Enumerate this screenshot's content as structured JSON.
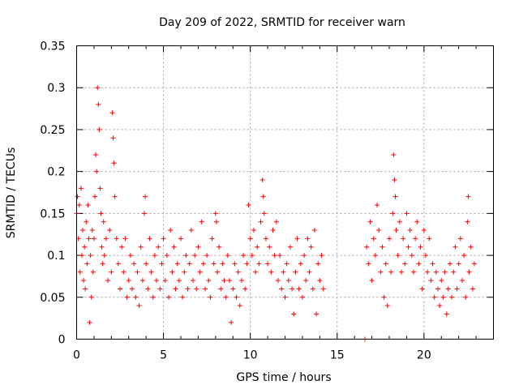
{
  "chart_data": {
    "type": "scatter",
    "title": "Day 209 of 2022, SRMTID for receiver warn",
    "xlabel": "GPS time / hours",
    "ylabel": "SRMTID / TECUs",
    "xlim": [
      0,
      24
    ],
    "ylim": [
      0,
      0.35
    ],
    "xticks": [
      "0",
      "5",
      "10",
      "15",
      "20"
    ],
    "yticks": [
      "0",
      "0.05",
      "0.1",
      "0.15",
      "0.2",
      "0.25",
      "0.3",
      "0.35"
    ],
    "grid": true,
    "marker": "+",
    "color": "#ff0000",
    "series": [
      {
        "name": "SRMTID",
        "points": [
          [
            0.0,
            0.15
          ],
          [
            0.05,
            0.17
          ],
          [
            0.1,
            0.12
          ],
          [
            0.15,
            0.16
          ],
          [
            0.2,
            0.08
          ],
          [
            0.25,
            0.18
          ],
          [
            0.3,
            0.1
          ],
          [
            0.35,
            0.13
          ],
          [
            0.4,
            0.07
          ],
          [
            0.45,
            0.11
          ],
          [
            0.5,
            0.06
          ],
          [
            0.55,
            0.14
          ],
          [
            0.6,
            0.09
          ],
          [
            0.65,
            0.16
          ],
          [
            0.7,
            0.12
          ],
          [
            0.75,
            0.02
          ],
          [
            0.8,
            0.1
          ],
          [
            0.85,
            0.05
          ],
          [
            0.9,
            0.13
          ],
          [
            0.95,
            0.08
          ],
          [
            1.0,
            0.12
          ],
          [
            1.05,
            0.17
          ],
          [
            1.1,
            0.22
          ],
          [
            1.15,
            0.2
          ],
          [
            1.2,
            0.3
          ],
          [
            1.25,
            0.28
          ],
          [
            1.3,
            0.25
          ],
          [
            1.35,
            0.18
          ],
          [
            1.4,
            0.15
          ],
          [
            1.45,
            0.11
          ],
          [
            1.5,
            0.09
          ],
          [
            1.55,
            0.14
          ],
          [
            1.6,
            0.1
          ],
          [
            1.7,
            0.12
          ],
          [
            1.8,
            0.07
          ],
          [
            1.9,
            0.13
          ],
          [
            2.0,
            0.08
          ],
          [
            2.05,
            0.27
          ],
          [
            2.1,
            0.24
          ],
          [
            2.15,
            0.21
          ],
          [
            2.2,
            0.17
          ],
          [
            2.3,
            0.12
          ],
          [
            2.4,
            0.09
          ],
          [
            2.5,
            0.06
          ],
          [
            2.6,
            0.11
          ],
          [
            2.7,
            0.08
          ],
          [
            2.8,
            0.12
          ],
          [
            2.9,
            0.05
          ],
          [
            3.0,
            0.07
          ],
          [
            3.1,
            0.1
          ],
          [
            3.2,
            0.06
          ],
          [
            3.3,
            0.09
          ],
          [
            3.4,
            0.05
          ],
          [
            3.5,
            0.08
          ],
          [
            3.6,
            0.04
          ],
          [
            3.7,
            0.11
          ],
          [
            3.8,
            0.07
          ],
          [
            3.9,
            0.15
          ],
          [
            3.95,
            0.17
          ],
          [
            4.0,
            0.09
          ],
          [
            4.1,
            0.06
          ],
          [
            4.2,
            0.12
          ],
          [
            4.3,
            0.08
          ],
          [
            4.4,
            0.05
          ],
          [
            4.5,
            0.1
          ],
          [
            4.6,
            0.07
          ],
          [
            4.7,
            0.11
          ],
          [
            4.8,
            0.06
          ],
          [
            4.9,
            0.09
          ],
          [
            5.0,
            0.12
          ],
          [
            5.1,
            0.07
          ],
          [
            5.2,
            0.1
          ],
          [
            5.3,
            0.05
          ],
          [
            5.4,
            0.13
          ],
          [
            5.5,
            0.08
          ],
          [
            5.6,
            0.11
          ],
          [
            5.7,
            0.06
          ],
          [
            5.8,
            0.09
          ],
          [
            5.9,
            0.07
          ],
          [
            6.0,
            0.12
          ],
          [
            6.1,
            0.05
          ],
          [
            6.2,
            0.08
          ],
          [
            6.3,
            0.1
          ],
          [
            6.4,
            0.06
          ],
          [
            6.5,
            0.09
          ],
          [
            6.6,
            0.13
          ],
          [
            6.7,
            0.07
          ],
          [
            6.8,
            0.1
          ],
          [
            6.9,
            0.06
          ],
          [
            7.0,
            0.11
          ],
          [
            7.1,
            0.08
          ],
          [
            7.2,
            0.14
          ],
          [
            7.3,
            0.09
          ],
          [
            7.4,
            0.06
          ],
          [
            7.5,
            0.1
          ],
          [
            7.6,
            0.07
          ],
          [
            7.7,
            0.05
          ],
          [
            7.8,
            0.12
          ],
          [
            7.9,
            0.09
          ],
          [
            8.0,
            0.15
          ],
          [
            8.05,
            0.14
          ],
          [
            8.1,
            0.08
          ],
          [
            8.2,
            0.11
          ],
          [
            8.3,
            0.06
          ],
          [
            8.4,
            0.09
          ],
          [
            8.5,
            0.07
          ],
          [
            8.6,
            0.05
          ],
          [
            8.7,
            0.1
          ],
          [
            8.8,
            0.07
          ],
          [
            8.9,
            0.02
          ],
          [
            9.0,
            0.06
          ],
          [
            9.1,
            0.09
          ],
          [
            9.2,
            0.05
          ],
          [
            9.3,
            0.08
          ],
          [
            9.4,
            0.04
          ],
          [
            9.5,
            0.07
          ],
          [
            9.6,
            0.1
          ],
          [
            9.7,
            0.06
          ],
          [
            9.8,
            0.09
          ],
          [
            9.9,
            0.16
          ],
          [
            10.0,
            0.12
          ],
          [
            10.1,
            0.1
          ],
          [
            10.2,
            0.13
          ],
          [
            10.3,
            0.08
          ],
          [
            10.4,
            0.11
          ],
          [
            10.5,
            0.09
          ],
          [
            10.6,
            0.14
          ],
          [
            10.7,
            0.19
          ],
          [
            10.75,
            0.17
          ],
          [
            10.8,
            0.15
          ],
          [
            10.9,
            0.12
          ],
          [
            11.0,
            0.09
          ],
          [
            11.1,
            0.11
          ],
          [
            11.2,
            0.08
          ],
          [
            11.3,
            0.13
          ],
          [
            11.4,
            0.1
          ],
          [
            11.5,
            0.14
          ],
          [
            11.6,
            0.07
          ],
          [
            11.7,
            0.1
          ],
          [
            11.8,
            0.06
          ],
          [
            11.9,
            0.08
          ],
          [
            12.0,
            0.05
          ],
          [
            12.1,
            0.09
          ],
          [
            12.2,
            0.07
          ],
          [
            12.3,
            0.11
          ],
          [
            12.4,
            0.06
          ],
          [
            12.5,
            0.03
          ],
          [
            12.6,
            0.08
          ],
          [
            12.7,
            0.12
          ],
          [
            12.8,
            0.06
          ],
          [
            12.9,
            0.09
          ],
          [
            13.0,
            0.05
          ],
          [
            13.1,
            0.1
          ],
          [
            13.2,
            0.07
          ],
          [
            13.3,
            0.12
          ],
          [
            13.4,
            0.08
          ],
          [
            13.5,
            0.11
          ],
          [
            13.6,
            0.06
          ],
          [
            13.7,
            0.13
          ],
          [
            13.8,
            0.03
          ],
          [
            13.9,
            0.09
          ],
          [
            14.0,
            0.07
          ],
          [
            14.1,
            0.1
          ],
          [
            14.2,
            0.06
          ],
          [
            16.6,
            0.0
          ],
          [
            16.7,
            0.11
          ],
          [
            16.8,
            0.09
          ],
          [
            16.9,
            0.14
          ],
          [
            17.0,
            0.07
          ],
          [
            17.1,
            0.12
          ],
          [
            17.2,
            0.1
          ],
          [
            17.3,
            0.16
          ],
          [
            17.4,
            0.13
          ],
          [
            17.5,
            0.08
          ],
          [
            17.6,
            0.11
          ],
          [
            17.7,
            0.05
          ],
          [
            17.8,
            0.09
          ],
          [
            17.9,
            0.04
          ],
          [
            18.0,
            0.12
          ],
          [
            18.1,
            0.08
          ],
          [
            18.2,
            0.15
          ],
          [
            18.25,
            0.22
          ],
          [
            18.3,
            0.19
          ],
          [
            18.35,
            0.17
          ],
          [
            18.4,
            0.13
          ],
          [
            18.5,
            0.1
          ],
          [
            18.6,
            0.14
          ],
          [
            18.7,
            0.08
          ],
          [
            18.8,
            0.12
          ],
          [
            18.9,
            0.09
          ],
          [
            19.0,
            0.15
          ],
          [
            19.1,
            0.11
          ],
          [
            19.2,
            0.13
          ],
          [
            19.3,
            0.1
          ],
          [
            19.4,
            0.08
          ],
          [
            19.5,
            0.12
          ],
          [
            19.6,
            0.14
          ],
          [
            19.7,
            0.09
          ],
          [
            19.8,
            0.11
          ],
          [
            19.9,
            0.06
          ],
          [
            20.0,
            0.13
          ],
          [
            20.1,
            0.1
          ],
          [
            20.2,
            0.08
          ],
          [
            20.3,
            0.12
          ],
          [
            20.4,
            0.07
          ],
          [
            20.5,
            0.09
          ],
          [
            20.6,
            0.05
          ],
          [
            20.7,
            0.08
          ],
          [
            20.8,
            0.06
          ],
          [
            20.9,
            0.04
          ],
          [
            21.0,
            0.07
          ],
          [
            21.1,
            0.05
          ],
          [
            21.2,
            0.08
          ],
          [
            21.3,
            0.03
          ],
          [
            21.4,
            0.06
          ],
          [
            21.5,
            0.09
          ],
          [
            21.6,
            0.05
          ],
          [
            21.7,
            0.08
          ],
          [
            21.8,
            0.11
          ],
          [
            21.9,
            0.06
          ],
          [
            22.0,
            0.09
          ],
          [
            22.1,
            0.12
          ],
          [
            22.2,
            0.07
          ],
          [
            22.3,
            0.1
          ],
          [
            22.4,
            0.05
          ],
          [
            22.5,
            0.14
          ],
          [
            22.55,
            0.17
          ],
          [
            22.6,
            0.08
          ],
          [
            22.7,
            0.11
          ],
          [
            22.8,
            0.06
          ],
          [
            22.9,
            0.09
          ]
        ]
      }
    ]
  }
}
